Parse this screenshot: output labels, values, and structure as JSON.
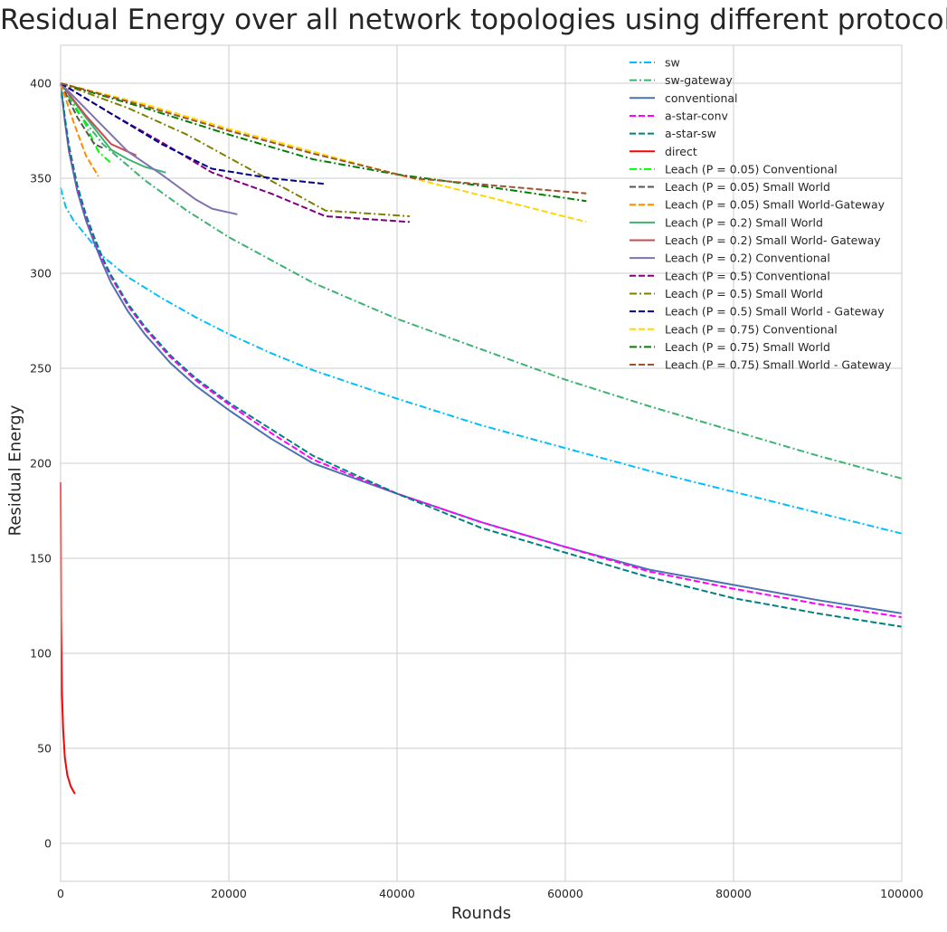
{
  "chart_data": {
    "type": "line",
    "title": "Residual Energy over all network topologies using different protocols",
    "xlabel": "Rounds",
    "ylabel": "Residual Energy",
    "xlim": [
      0,
      100000
    ],
    "ylim": [
      -20,
      420
    ],
    "xticks": [
      0,
      20000,
      40000,
      60000,
      80000,
      100000
    ],
    "yticks": [
      0,
      50,
      100,
      150,
      200,
      250,
      300,
      350,
      400
    ],
    "grid": true,
    "legend_position": "top-right",
    "series": [
      {
        "name": "sw",
        "color": "#00bfff",
        "style": "dashdot",
        "x": [
          0,
          600,
          1500,
          3000,
          5000,
          8000,
          12000,
          16000,
          20000,
          25000,
          30000,
          40000,
          50000,
          60000,
          70000,
          80000,
          90000,
          100000
        ],
        "y": [
          345,
          335,
          328,
          320,
          309,
          298,
          287,
          277,
          268,
          258,
          249,
          234,
          220,
          208,
          196,
          185,
          174,
          163
        ]
      },
      {
        "name": "sw-gateway",
        "color": "#3cb371",
        "style": "dashdot",
        "x": [
          0,
          2000,
          5000,
          10000,
          15000,
          20000,
          30000,
          40000,
          50000,
          60000,
          70000,
          80000,
          90000,
          100000
        ],
        "y": [
          400,
          385,
          368,
          349,
          333,
          319,
          295,
          276,
          260,
          244,
          230,
          217,
          204,
          192
        ]
      },
      {
        "name": "conventional",
        "color": "#4c72b0",
        "style": "solid",
        "x": [
          0,
          500,
          1000,
          2000,
          3000,
          4000,
          5000,
          6000,
          8000,
          10000,
          13000,
          16000,
          20000,
          25000,
          30000,
          40000,
          50000,
          60000,
          70000,
          80000,
          90000,
          100000
        ],
        "y": [
          400,
          380,
          364,
          343,
          328,
          316,
          305,
          295,
          280,
          268,
          253,
          241,
          228,
          213,
          200,
          184,
          169,
          156,
          144,
          136,
          128,
          121
        ]
      },
      {
        "name": "a-star-conv",
        "color": "#ff00ff",
        "style": "dashed",
        "x": [
          0,
          500,
          1000,
          2000,
          3000,
          4000,
          5000,
          6000,
          8000,
          10000,
          13000,
          16000,
          20000,
          25000,
          30000,
          40000,
          50000,
          60000,
          70000,
          80000,
          90000,
          100000
        ],
        "y": [
          400,
          381,
          366,
          345,
          330,
          318,
          307,
          298,
          283,
          271,
          256,
          244,
          231,
          216,
          202,
          184,
          169,
          156,
          143,
          134,
          126,
          119
        ]
      },
      {
        "name": "a-star-sw",
        "color": "#008080",
        "style": "dashed",
        "x": [
          0,
          500,
          1000,
          2000,
          3000,
          4000,
          5000,
          6000,
          8000,
          10000,
          13000,
          16000,
          20000,
          25000,
          30000,
          40000,
          50000,
          60000,
          70000,
          80000,
          90000,
          100000
        ],
        "y": [
          400,
          382,
          367,
          346,
          331,
          319,
          308,
          299,
          284,
          272,
          257,
          245,
          232,
          218,
          204,
          184,
          166,
          153,
          140,
          129,
          121,
          114
        ]
      },
      {
        "name": "direct",
        "color": "#ff0000",
        "style": "solid",
        "x": [
          0,
          50,
          150,
          300,
          500,
          800,
          1200,
          1700
        ],
        "y": [
          190,
          120,
          80,
          60,
          45,
          36,
          30,
          26
        ]
      },
      {
        "name": "Leach (P = 0.05) Conventional",
        "color": "#00ff00",
        "style": "dashdot",
        "x": [
          0,
          1500,
          3000,
          4500,
          6000
        ],
        "y": [
          400,
          390,
          378,
          364,
          358
        ]
      },
      {
        "name": "Leach (P = 0.05) Small World",
        "color": "#555555",
        "style": "dashed",
        "x": [
          0,
          2000,
          4000,
          5000
        ],
        "y": [
          400,
          382,
          368,
          366
        ]
      },
      {
        "name": "Leach (P = 0.05) Small World-Gateway",
        "color": "#ff8c00",
        "style": "dashed",
        "x": [
          0,
          1500,
          3000,
          4500
        ],
        "y": [
          400,
          380,
          362,
          351
        ]
      },
      {
        "name": "Leach (P = 0.2) Small World",
        "color": "#3cb371",
        "style": "solid",
        "x": [
          0,
          3000,
          6000,
          8000,
          10000,
          12500
        ],
        "y": [
          400,
          382,
          365,
          360,
          356,
          353
        ]
      },
      {
        "name": "Leach (P = 0.2) Small World- Gateway",
        "color": "#c44e52",
        "style": "solid",
        "x": [
          0,
          3000,
          6000,
          9000
        ],
        "y": [
          400,
          383,
          368,
          362
        ]
      },
      {
        "name": "Leach (P = 0.2) Conventional",
        "color": "#8172b2",
        "style": "solid",
        "x": [
          0,
          4000,
          8000,
          12000,
          16000,
          18000,
          21000
        ],
        "y": [
          400,
          382,
          364,
          352,
          339,
          334,
          331
        ]
      },
      {
        "name": "Leach (P = 0.5) Conventional",
        "color": "#800080",
        "style": "dashed",
        "x": [
          0,
          6000,
          12000,
          18000,
          25000,
          31500,
          41500
        ],
        "y": [
          400,
          384,
          369,
          353,
          342,
          330,
          327
        ]
      },
      {
        "name": "Leach (P = 0.5) Small World",
        "color": "#808000",
        "style": "dashdot",
        "x": [
          0,
          8000,
          15000,
          22000,
          31500,
          41500
        ],
        "y": [
          400,
          387,
          373,
          356,
          333,
          330
        ]
      },
      {
        "name": "Leach (P = 0.5) Small World - Gateway",
        "color": "#00008b",
        "style": "dashed",
        "x": [
          0,
          6000,
          12000,
          18000,
          25000,
          31500
        ],
        "y": [
          400,
          384,
          368,
          355,
          350,
          347
        ]
      },
      {
        "name": "Leach (P = 0.75) Conventional",
        "color": "#ffd700",
        "style": "dashed",
        "x": [
          0,
          10000,
          20000,
          30000,
          40000,
          50000,
          62500
        ],
        "y": [
          400,
          389,
          376,
          364,
          352,
          341,
          327
        ]
      },
      {
        "name": "Leach (P = 0.75) Small World",
        "color": "#008000",
        "style": "dashdot",
        "x": [
          0,
          10000,
          20000,
          30000,
          40000,
          50000,
          62500
        ],
        "y": [
          400,
          387,
          373,
          360,
          352,
          346,
          338
        ]
      },
      {
        "name": "Leach (P = 0.75) Small World - Gateway",
        "color": "#a0522d",
        "style": "dashed",
        "x": [
          0,
          10000,
          20000,
          30000,
          42000,
          52000,
          62500
        ],
        "y": [
          400,
          388,
          375,
          363,
          350,
          346,
          342
        ]
      }
    ]
  }
}
